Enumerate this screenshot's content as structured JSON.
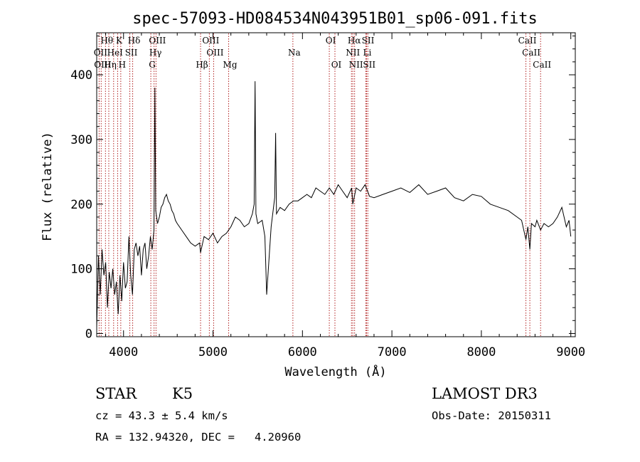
{
  "chart_data": {
    "type": "line",
    "title": "spec-57093-HD084534N043951B01_sp06-091.fits",
    "xlabel": "Wavelength (Å)",
    "ylabel": "Flux (relative)",
    "xlim": [
      3700,
      9050
    ],
    "ylim": [
      -5,
      465
    ],
    "xticks": [
      {
        "value": 4000,
        "label": "4000"
      },
      {
        "value": 5000,
        "label": "5000"
      },
      {
        "value": 6000,
        "label": "6000"
      },
      {
        "value": 7000,
        "label": "7000"
      },
      {
        "value": 8000,
        "label": "8000"
      },
      {
        "value": 9000,
        "label": "9000"
      }
    ],
    "yticks": [
      {
        "value": 0,
        "label": "0"
      },
      {
        "value": 100,
        "label": "100"
      },
      {
        "value": 200,
        "label": "200"
      },
      {
        "value": 300,
        "label": "300"
      },
      {
        "value": 400,
        "label": "400"
      }
    ],
    "series": [
      {
        "name": "spectrum",
        "x": [
          3700,
          3720,
          3740,
          3760,
          3780,
          3800,
          3820,
          3840,
          3860,
          3880,
          3900,
          3920,
          3940,
          3960,
          3980,
          4000,
          4020,
          4040,
          4060,
          4080,
          4100,
          4120,
          4140,
          4160,
          4180,
          4200,
          4220,
          4240,
          4260,
          4280,
          4300,
          4320,
          4340,
          4350,
          4360,
          4380,
          4400,
          4420,
          4440,
          4460,
          4480,
          4500,
          4520,
          4540,
          4560,
          4580,
          4600,
          4650,
          4700,
          4750,
          4800,
          4850,
          4861,
          4900,
          4950,
          5000,
          5050,
          5100,
          5150,
          5200,
          5250,
          5300,
          5350,
          5400,
          5440,
          5460,
          5470,
          5480,
          5500,
          5550,
          5580,
          5600,
          5650,
          5690,
          5700,
          5710,
          5750,
          5800,
          5850,
          5900,
          5950,
          6000,
          6050,
          6100,
          6150,
          6200,
          6250,
          6300,
          6350,
          6400,
          6450,
          6500,
          6550,
          6563,
          6600,
          6650,
          6700,
          6750,
          6800,
          6900,
          7000,
          7100,
          7200,
          7300,
          7400,
          7500,
          7600,
          7700,
          7800,
          7900,
          8000,
          8100,
          8200,
          8300,
          8400,
          8450,
          8498,
          8520,
          8542,
          8560,
          8600,
          8620,
          8662,
          8700,
          8750,
          8800,
          8850,
          8900,
          8950,
          8980,
          9000
        ],
        "y": [
          10,
          120,
          60,
          130,
          90,
          110,
          40,
          95,
          70,
          100,
          60,
          80,
          30,
          90,
          50,
          110,
          70,
          80,
          150,
          90,
          60,
          130,
          140,
          120,
          135,
          90,
          130,
          140,
          100,
          120,
          150,
          130,
          160,
          380,
          190,
          170,
          180,
          195,
          200,
          210,
          215,
          205,
          200,
          190,
          185,
          175,
          170,
          160,
          150,
          140,
          135,
          140,
          125,
          150,
          145,
          155,
          140,
          150,
          155,
          165,
          180,
          175,
          165,
          170,
          185,
          200,
          390,
          185,
          170,
          175,
          150,
          60,
          165,
          210,
          310,
          185,
          195,
          190,
          200,
          205,
          205,
          210,
          215,
          210,
          225,
          220,
          215,
          225,
          215,
          230,
          220,
          210,
          225,
          200,
          225,
          220,
          230,
          212,
          210,
          215,
          220,
          225,
          218,
          230,
          215,
          220,
          225,
          210,
          205,
          215,
          212,
          200,
          195,
          190,
          180,
          175,
          145,
          165,
          130,
          170,
          165,
          175,
          160,
          170,
          165,
          170,
          180,
          195,
          165,
          175,
          150
        ]
      }
    ],
    "lines": [
      {
        "label": "Hθ",
        "wavelength": 3798,
        "row": 0
      },
      {
        "label": "OII",
        "wavelength": 3727,
        "row": 1
      },
      {
        "label": "OIII",
        "wavelength": 3750,
        "row": 2
      },
      {
        "label": "HeI",
        "wavelength": 3889,
        "row": 1
      },
      {
        "label": "Hη",
        "wavelength": 3835,
        "row": 2
      },
      {
        "label": "K",
        "wavelength": 3934,
        "row": 0
      },
      {
        "label": "SII",
        "wavelength": 4070,
        "row": 1
      },
      {
        "label": "H",
        "wavelength": 3969,
        "row": 2
      },
      {
        "label": "Hδ",
        "wavelength": 4102,
        "row": 0
      },
      {
        "label": "OIII",
        "wavelength": 4363,
        "row": 0
      },
      {
        "label": "Hγ",
        "wavelength": 4341,
        "row": 1
      },
      {
        "label": "G",
        "wavelength": 4305,
        "row": 2
      },
      {
        "label": "Hβ",
        "wavelength": 4861,
        "row": 2
      },
      {
        "label": "OIII",
        "wavelength": 4959,
        "row": 0
      },
      {
        "label": "OIII",
        "wavelength": 5007,
        "row": 1
      },
      {
        "label": "Mg",
        "wavelength": 5175,
        "row": 2
      },
      {
        "label": "Na",
        "wavelength": 5893,
        "row": 1
      },
      {
        "label": "OI",
        "wavelength": 6300,
        "row": 0
      },
      {
        "label": "OI",
        "wavelength": 6363,
        "row": 2
      },
      {
        "label": "Hα",
        "wavelength": 6563,
        "row": 0
      },
      {
        "label": "NII",
        "wavelength": 6548,
        "row": 1
      },
      {
        "label": "NII",
        "wavelength": 6583,
        "row": 2
      },
      {
        "label": "SII",
        "wavelength": 6717,
        "row": 0
      },
      {
        "label": "Li",
        "wavelength": 6708,
        "row": 1
      },
      {
        "label": "SII",
        "wavelength": 6731,
        "row": 2
      },
      {
        "label": "CaII",
        "wavelength": 8498,
        "row": 0
      },
      {
        "label": "CaII",
        "wavelength": 8542,
        "row": 1
      },
      {
        "label": "CaII",
        "wavelength": 8662,
        "row": 2
      }
    ],
    "colors": {
      "spectrum": "#000000",
      "lines": "#b22222"
    }
  },
  "info": {
    "class": "STAR",
    "subclass": "K5",
    "survey": "LAMOST DR3",
    "cz": "cz = 43.3 ± 5.4 km/s",
    "obs_date": "Obs-Date: 20150311",
    "radec": "RA = 132.94320, DEC =   4.20960"
  }
}
